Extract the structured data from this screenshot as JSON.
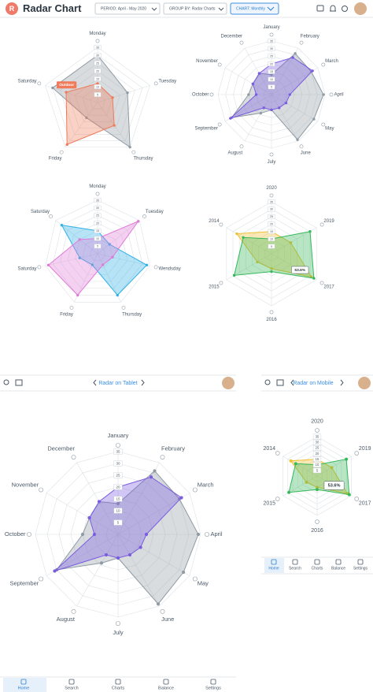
{
  "header": {
    "logo": "R",
    "title": "Radar Chart",
    "filters": [
      {
        "label": "PERIOD:",
        "value": "April - May 2020"
      },
      {
        "label": "GROUP BY:",
        "value": "Radar Charts"
      },
      {
        "label": "CHART:",
        "value": "Monthly"
      }
    ]
  },
  "chart_data": [
    {
      "type": "radar",
      "categories": [
        "Monday",
        "Tuesday",
        "Thursday",
        "Friday",
        "Saturday"
      ],
      "rlim": [
        0,
        35
      ],
      "rticks": [
        5,
        10,
        15,
        20,
        25,
        30,
        35
      ],
      "series": [
        {
          "color": "#8e9aa4",
          "values": [
            30,
            20,
            35,
            12,
            30
          ]
        },
        {
          "name": "Outdoor",
          "color": "#f07a5a",
          "values": [
            12,
            10,
            18,
            33,
            21
          ]
        }
      ]
    },
    {
      "type": "radar",
      "categories": [
        "January",
        "February",
        "March",
        "April",
        "May",
        "June",
        "July",
        "August",
        "September",
        "October",
        "November",
        "December"
      ],
      "rlim": [
        0,
        35
      ],
      "rticks": [
        5,
        10,
        15,
        20,
        25,
        30,
        35
      ],
      "series": [
        {
          "color": "#8e9aa4",
          "values": [
            13,
            31,
            30,
            34,
            32,
            34,
            10,
            14,
            30,
            15,
            14,
            16
          ]
        },
        {
          "color": "#7b5ce0",
          "values": [
            20,
            28,
            31,
            12,
            11,
            10,
            10,
            10,
            31,
            10,
            14,
            16
          ]
        }
      ]
    },
    {
      "type": "radar",
      "categories": [
        "Monday",
        "Tuesday",
        "Wendsday",
        "Thursday",
        "Friday",
        "Saturday",
        "Saturday"
      ],
      "rlim": [
        0,
        35
      ],
      "rticks": [
        5,
        10,
        15,
        20,
        25,
        30,
        35
      ],
      "series": [
        {
          "color": "#2fb0e6",
          "values": [
            15,
            10,
            33,
            30,
            8,
            12,
            30
          ]
        },
        {
          "color": "#e07ad8",
          "values": [
            10,
            34,
            10,
            8,
            30,
            33,
            15
          ]
        }
      ]
    },
    {
      "type": "radar",
      "categories": [
        "2020",
        "2019",
        "2017",
        "2016",
        "2015",
        "2014"
      ],
      "rlim": [
        0,
        35
      ],
      "rticks": [
        5,
        10,
        15,
        20,
        25,
        30,
        35
      ],
      "annotation": "53.6%",
      "series": [
        {
          "color": "#f0c030",
          "values": [
            15,
            15,
            31,
            10,
            11,
            27
          ]
        },
        {
          "color": "#34b85a",
          "values": [
            10,
            30,
            33,
            12,
            29,
            22
          ]
        }
      ]
    }
  ],
  "tablet": {
    "title": "Radar on Tablet",
    "nav": [
      "Home",
      "Search",
      "Charts",
      "Balance",
      "Settings"
    ]
  },
  "mobile": {
    "title": "Radar on Mobile",
    "nav": [
      "Home",
      "Search",
      "Charts",
      "Balance",
      "Settings"
    ]
  }
}
